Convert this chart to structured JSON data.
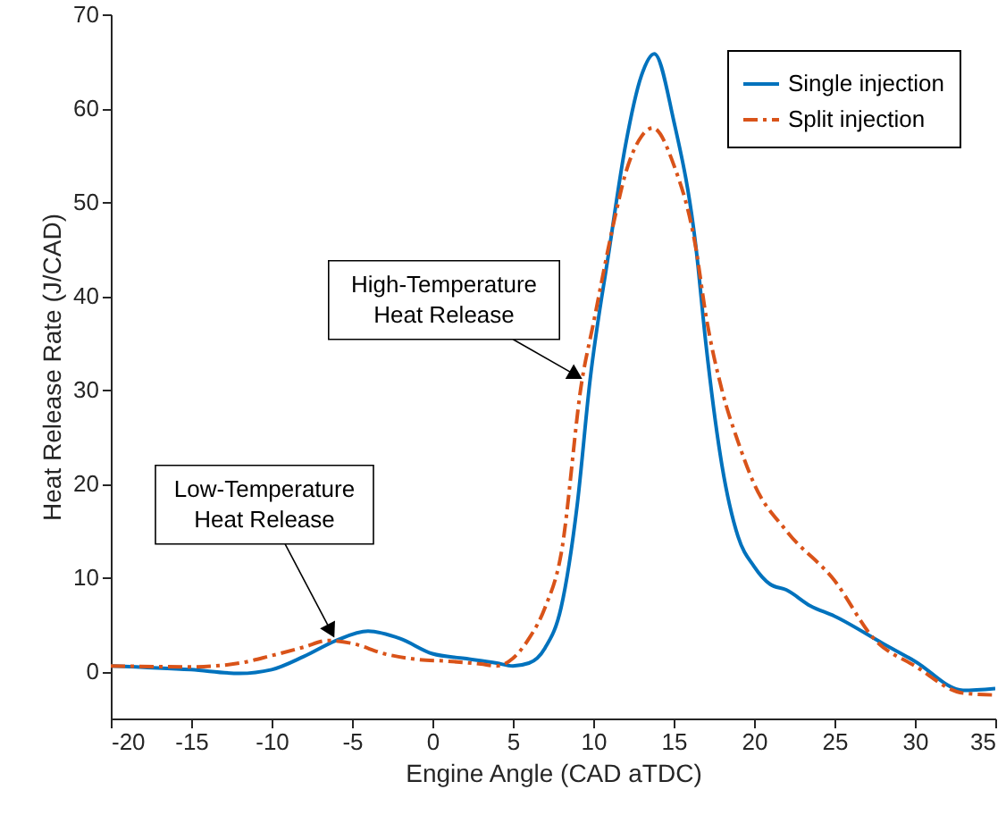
{
  "chart_data": {
    "type": "line",
    "xlabel": "Engine Angle (CAD aTDC)",
    "ylabel": "Heat Release Rate (J/CAD)",
    "xlim": [
      -20,
      35
    ],
    "ylim": [
      -5,
      70
    ],
    "xticks": [
      -20,
      -15,
      -10,
      -5,
      0,
      5,
      10,
      15,
      20,
      25,
      30,
      35
    ],
    "yticks": [
      0,
      10,
      20,
      30,
      40,
      50,
      60,
      70
    ],
    "grid": false,
    "legend": "top right",
    "series": [
      {
        "name": "Single injection",
        "color": "#0072bd",
        "line_style": "solid",
        "x": [
          -20,
          -15,
          -12,
          -10,
          -8,
          -6,
          -4,
          -2,
          0,
          2,
          4,
          5,
          6,
          7,
          8,
          9,
          9.8,
          11,
          12,
          13,
          13.8,
          15,
          16.4,
          17,
          18,
          19,
          20,
          21,
          22,
          23.5,
          25,
          28,
          30,
          33,
          35
        ],
        "values": [
          0.6,
          0.2,
          -0.2,
          0.2,
          1.6,
          3.3,
          4.3,
          3.5,
          1.9,
          1.4,
          0.9,
          0.6,
          0.9,
          2.5,
          6.8,
          17.7,
          31,
          45,
          56,
          63.5,
          65.8,
          58.7,
          45,
          35,
          22,
          14.4,
          11.2,
          9.3,
          8.7,
          7,
          5.9,
          3,
          1.1,
          -2,
          -1.8
        ]
      },
      {
        "name": "Split injection",
        "color": "#d95319",
        "line_style": "dashdot",
        "x": [
          -20,
          -15,
          -12,
          -10,
          -8,
          -6.5,
          -5,
          -3,
          -1,
          1,
          3,
          4,
          5,
          6,
          7,
          8,
          9.3,
          10,
          11.3,
          12,
          13,
          13.7,
          15,
          16.4,
          17,
          18,
          19,
          20,
          22,
          25,
          27.5,
          30,
          33,
          35
        ],
        "values": [
          0.6,
          0.5,
          0.9,
          1.7,
          2.6,
          3.3,
          3.0,
          1.9,
          1.3,
          1.1,
          0.8,
          0.6,
          1.4,
          3.5,
          6.8,
          12.5,
          31,
          37,
          48,
          53,
          57,
          57.9,
          54,
          44.9,
          38,
          30,
          24.5,
          20,
          15,
          9.7,
          3.4,
          0.6,
          -2.3,
          -2.5
        ]
      }
    ],
    "annotations": [
      {
        "text": "Low-Temperature\nHeat Release",
        "x": -6,
        "y": 3.3
      },
      {
        "text": "High-Temperature\nHeat Release",
        "x": 9.5,
        "y": 31
      }
    ]
  }
}
